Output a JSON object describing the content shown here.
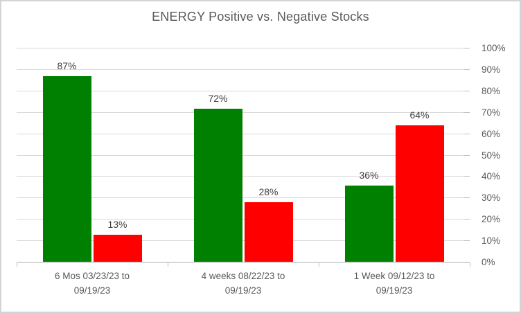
{
  "chart_data": {
    "type": "bar",
    "title": "ENERGY Positive vs. Negative Stocks",
    "legend": "none",
    "grid": true,
    "categories": [
      {
        "label": "6 Mos 03/23/23 to 09/19/23",
        "lines": [
          "6 Mos 03/23/23 to",
          "09/19/23"
        ]
      },
      {
        "label": "4 weeks 08/22/23 to 09/19/23",
        "lines": [
          "4 weeks 08/22/23 to",
          "09/19/23"
        ]
      },
      {
        "label": "1 Week 09/12/23 to 09/19/23",
        "lines": [
          "1 Week 09/12/23 to",
          "09/19/23"
        ]
      }
    ],
    "series": [
      {
        "name": "Positive",
        "color": "#008000",
        "values": [
          87,
          72,
          36
        ],
        "labels": [
          "87%",
          "72%",
          "36%"
        ]
      },
      {
        "name": "Negative",
        "color": "#FF0000",
        "values": [
          13,
          28,
          64
        ],
        "labels": [
          "13%",
          "28%",
          "64%"
        ]
      }
    ],
    "y_axis": {
      "position": "right",
      "min": 0,
      "max": 100,
      "step": 10,
      "unit": "%",
      "tick_labels": [
        "0%",
        "10%",
        "20%",
        "30%",
        "40%",
        "50%",
        "60%",
        "70%",
        "80%",
        "90%",
        "100%"
      ]
    },
    "colors": {
      "background": "#FFFFFF",
      "window_border": "#D4D4D4",
      "gridline": "#D9D9D9",
      "axis_line": "#D6D6D6",
      "tick": "#BFBFBF",
      "title_text": "#595959",
      "axis_text": "#595959",
      "data_label_text": "#404040"
    }
  }
}
